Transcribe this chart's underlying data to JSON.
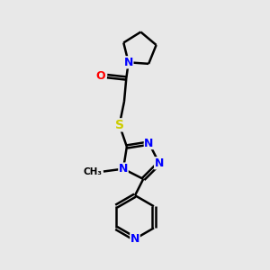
{
  "bg_color": "#e8e8e8",
  "atom_colors": {
    "C": "#000000",
    "N": "#0000ff",
    "O": "#ff0000",
    "S": "#cccc00",
    "H": "#000000"
  },
  "bond_color": "#000000",
  "bond_width": 1.8,
  "figsize": [
    3.0,
    3.0
  ],
  "dpi": 100,
  "xlim": [
    0,
    10
  ],
  "ylim": [
    0,
    10
  ]
}
